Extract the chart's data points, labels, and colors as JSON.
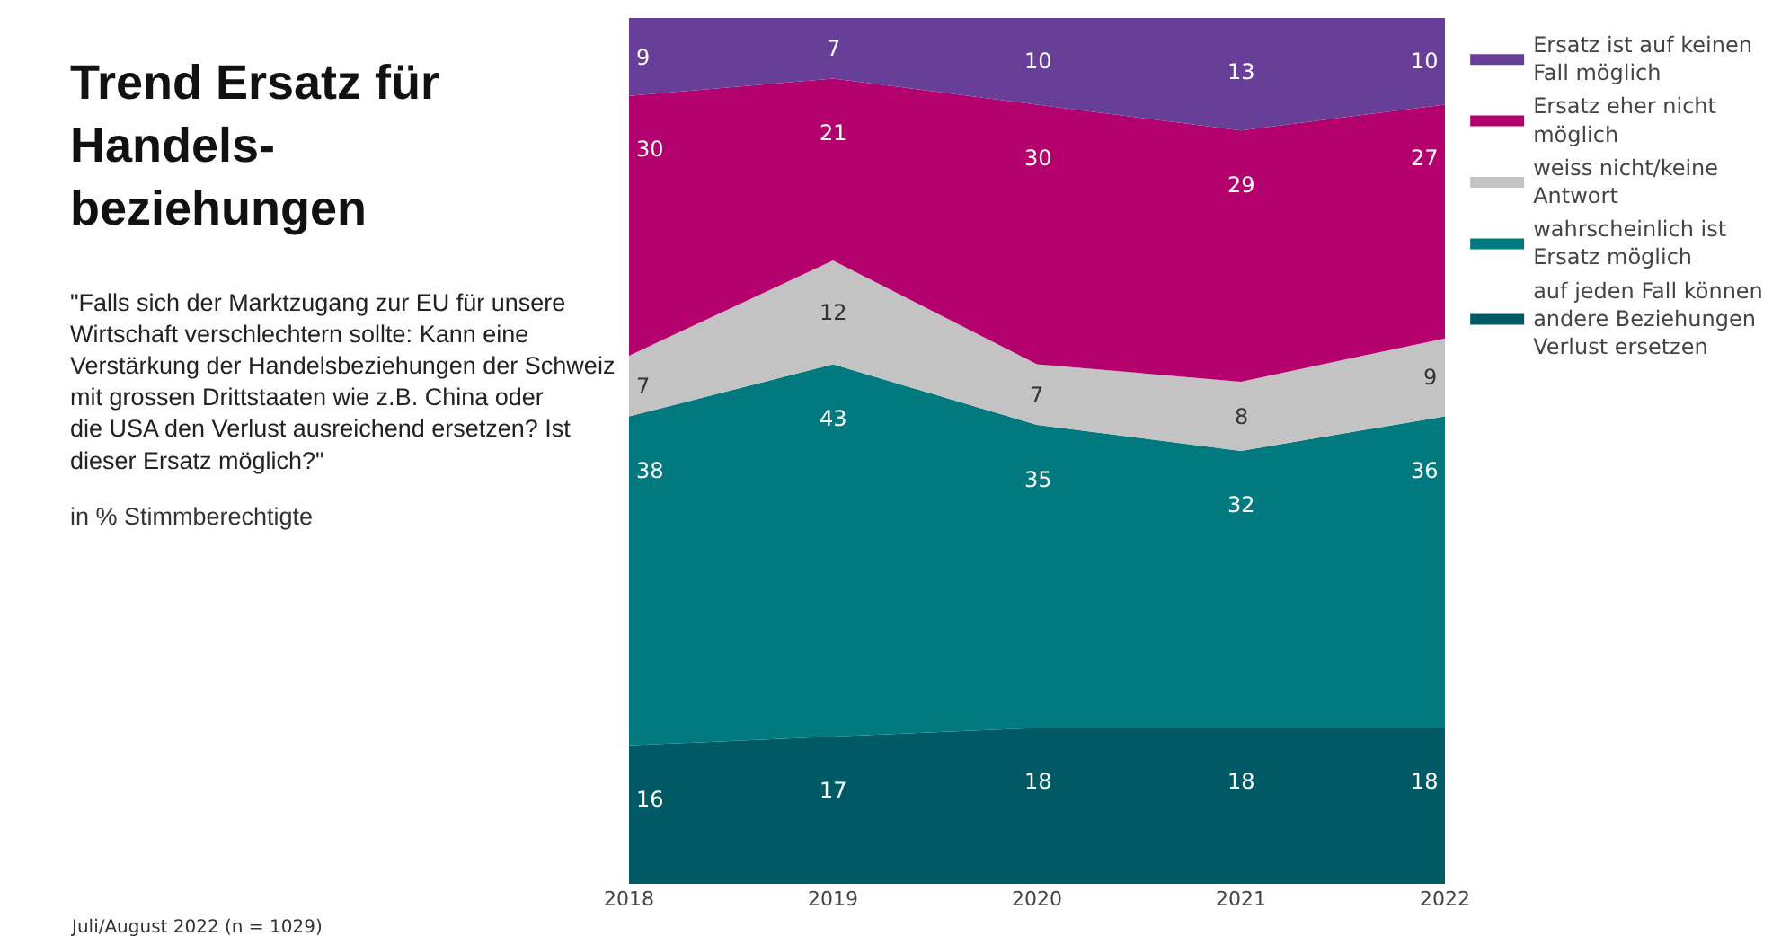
{
  "chart_data": {
    "type": "area",
    "stacked": true,
    "title": "Trend Ersatz für Handels-beziehungen",
    "subtitle": "\"Falls sich der Marktzugang zur EU für unsere Wirtschaft verschlechtern sollte: Kann eine Verstärkung der Handelsbeziehungen der Schweiz mit grossen Drittstaaten wie z.B. China oder die USA den Verlust ausreichend ersetzen? Ist dieser Ersatz möglich?\"",
    "annotations": [
      "in % Stimmberechtigte",
      "Juli/August 2022 (n = 1029)"
    ],
    "x": [
      2018,
      2019,
      2020,
      2021,
      2022
    ],
    "xlim": [
      2018,
      2022
    ],
    "xticks": [
      2018,
      2019,
      2020,
      2021,
      2022
    ],
    "tick_labels": "x",
    "legend": "right",
    "data_labels": true,
    "series": [
      {
        "name": "auf jeden Fall können andere Beziehungen Verlust ersetzen",
        "color": "#005a66",
        "values": [
          16,
          17,
          18,
          18,
          18
        ]
      },
      {
        "name": "wahrscheinlich ist Ersatz möglich",
        "color": "#007a7e",
        "values": [
          38,
          43,
          35,
          32,
          36
        ]
      },
      {
        "name": "weiss nicht/keine Antwort",
        "color": "#c3c3c3",
        "values": [
          7,
          12,
          7,
          8,
          9
        ]
      },
      {
        "name": "Ersatz eher nicht möglich",
        "color": "#b3006d",
        "values": [
          30,
          21,
          30,
          29,
          27
        ]
      },
      {
        "name": "Ersatz ist auf keinen Fall möglich",
        "color": "#673f98",
        "values": [
          9,
          7,
          10,
          13,
          10
        ]
      }
    ]
  }
}
